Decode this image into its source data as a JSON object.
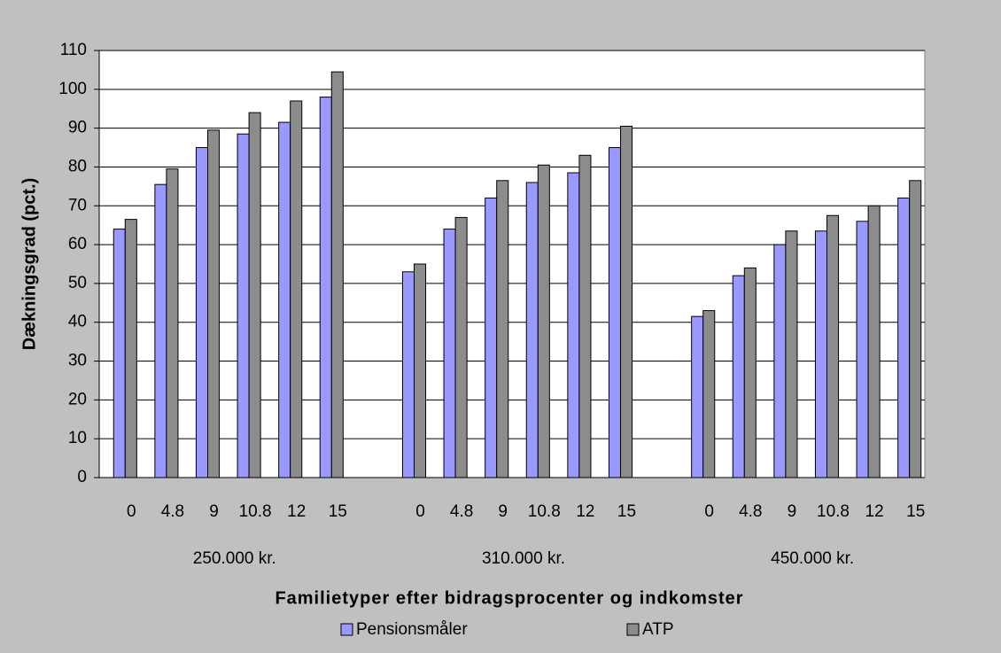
{
  "chart_data": {
    "type": "bar",
    "y_label": "Dækningsgrad (pct.)",
    "x_label": "Familietyper efter bidragsprocenter og indkomster",
    "categories": [
      "0",
      "4.8",
      "9",
      "10.8",
      "12",
      "15",
      null,
      "0",
      "4.8",
      "9",
      "10.8",
      "12",
      "15",
      null,
      "0",
      "4.8",
      "9",
      "10.8",
      "12",
      "15"
    ],
    "group_labels": [
      "250.000 kr.",
      "310.000 kr.",
      "450.000 kr."
    ],
    "series": [
      {
        "name": "Pensionsmåler",
        "color": "#9999ff",
        "values": [
          64,
          75.5,
          85,
          88.5,
          91.5,
          98,
          null,
          53,
          64,
          72,
          76,
          78.5,
          85,
          null,
          41.5,
          52,
          60,
          63.5,
          66,
          72
        ]
      },
      {
        "name": "ATP",
        "color": "#8c8c8c",
        "values": [
          66.5,
          79.5,
          89.5,
          94,
          97,
          104.5,
          null,
          55,
          67,
          76.5,
          80.5,
          83,
          90.5,
          null,
          43,
          54,
          63.5,
          67.5,
          70,
          76.5
        ]
      }
    ],
    "ylim": [
      0,
      110
    ],
    "yticks": [
      0,
      10,
      20,
      30,
      40,
      50,
      60,
      70,
      80,
      90,
      100,
      110
    ],
    "grid": true,
    "legend": "bottom"
  }
}
